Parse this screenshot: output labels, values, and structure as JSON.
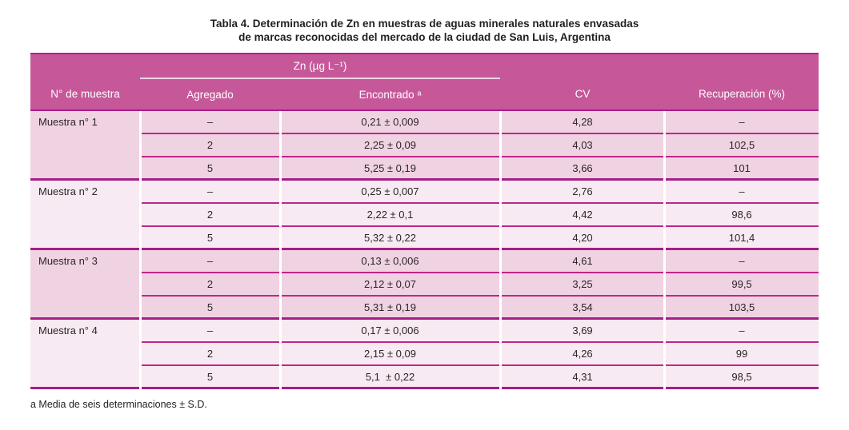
{
  "title": {
    "line1": "Tabla 4. Determinación de Zn en muestras de aguas minerales naturales envasadas",
    "line2": "de marcas reconocidas del mercado de la ciudad de San Luis, Argentina"
  },
  "table": {
    "group_header": "Zn (µg L⁻¹)",
    "columns": [
      "N° de muestra",
      "Agregado",
      "Encontrado ᵃ",
      "CV",
      "Recuperación (%)"
    ],
    "groups": [
      {
        "sample": "Muestra n° 1",
        "rows": [
          {
            "agregado": "–",
            "encontrado": "0,21 ± 0,009",
            "cv": "4,28",
            "recuperacion": "–"
          },
          {
            "agregado": "2",
            "encontrado": "2,25 ± 0,09",
            "cv": "4,03",
            "recuperacion": "102,5"
          },
          {
            "agregado": "5",
            "encontrado": "5,25 ± 0,19",
            "cv": "3,66",
            "recuperacion": "101"
          }
        ]
      },
      {
        "sample": "Muestra n° 2",
        "rows": [
          {
            "agregado": "–",
            "encontrado": "0,25 ± 0,007",
            "cv": "2,76",
            "recuperacion": "–"
          },
          {
            "agregado": "2",
            "encontrado": "2,22 ± 0,1",
            "cv": "4,42",
            "recuperacion": "98,6"
          },
          {
            "agregado": "5",
            "encontrado": "5,32 ± 0,22",
            "cv": "4,20",
            "recuperacion": "101,4"
          }
        ]
      },
      {
        "sample": "Muestra n° 3",
        "rows": [
          {
            "agregado": "–",
            "encontrado": "0,13 ± 0,006",
            "cv": "4,61",
            "recuperacion": "–"
          },
          {
            "agregado": "2",
            "encontrado": "2,12 ± 0,07",
            "cv": "3,25",
            "recuperacion": "99,5"
          },
          {
            "agregado": "5",
            "encontrado": "5,31 ± 0,19",
            "cv": "3,54",
            "recuperacion": "103,5"
          }
        ]
      },
      {
        "sample": "Muestra n° 4",
        "rows": [
          {
            "agregado": "–",
            "encontrado": "0,17 ± 0,006",
            "cv": "3,69",
            "recuperacion": "–"
          },
          {
            "agregado": "2",
            "encontrado": "2,15 ± 0,09",
            "cv": "4,26",
            "recuperacion": "99"
          },
          {
            "agregado": "5",
            "encontrado": "5,1  ± 0,22",
            "cv": "4,31",
            "recuperacion": "98,5"
          }
        ]
      }
    ]
  },
  "footnote": "a Media de seis determinaciones ± S.D.",
  "colors": {
    "header_bg": "#c6589a",
    "row_bg_dark": "#f0d3e2",
    "row_bg_light": "#f8eaf2",
    "rule_thin": "#c02589",
    "rule_group": "#a51e87",
    "spanner_underline": "#eed5e5"
  }
}
